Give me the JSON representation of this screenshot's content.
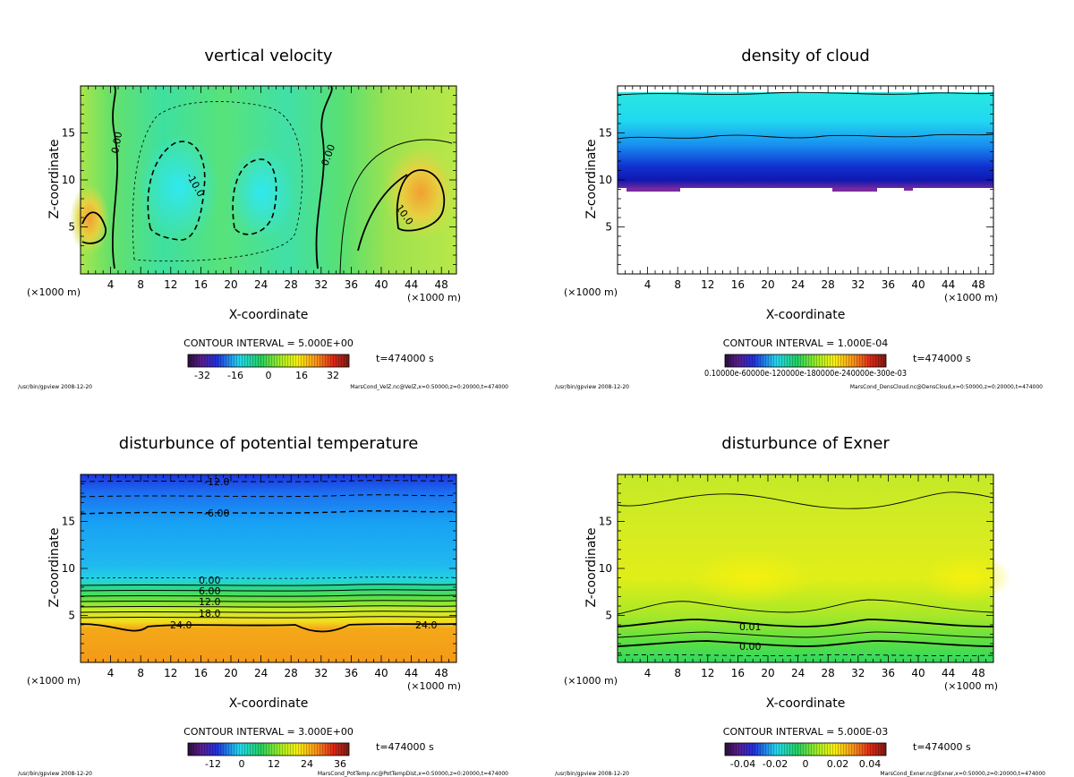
{
  "chart_data": [
    {
      "type": "heatmap",
      "title": "vertical velocity",
      "xlabel": "X-coordinate",
      "ylabel": "Z-coordinate",
      "x_unit_left": "(×1000 m)",
      "x_unit_right": "(×1000 m)",
      "xlim": [
        0,
        50
      ],
      "ylim": [
        0,
        20
      ],
      "xticks": [
        4,
        8,
        12,
        16,
        20,
        24,
        28,
        32,
        36,
        40,
        44,
        48
      ],
      "yticks": [
        5,
        10,
        15
      ],
      "contour_interval": "CONTOUR INTERVAL = 5.000E+00",
      "time": "t=474000 s",
      "colorbar_ticks": [
        "-32",
        "-16",
        "0",
        "16",
        "32"
      ],
      "contour_labels": [
        "0.00",
        "-10.0",
        "0.00",
        "10.0"
      ],
      "footer_left": "/usr/bin/gpview   2008-12-20",
      "footer_right": "MarsCond_VelZ.nc@VelZ,x=0:50000,z=0:20000,t=474000"
    },
    {
      "type": "heatmap",
      "title": "density of cloud",
      "xlabel": "X-coordinate",
      "ylabel": "Z-coordinate",
      "x_unit_left": "(×1000 m)",
      "x_unit_right": "(×1000 m)",
      "xlim": [
        0,
        50
      ],
      "ylim": [
        0,
        20
      ],
      "xticks": [
        4,
        8,
        12,
        16,
        20,
        24,
        28,
        32,
        36,
        40,
        44,
        48
      ],
      "yticks": [
        5,
        10,
        15
      ],
      "contour_interval": "CONTOUR INTERVAL = 1.000E-04",
      "time": "t=474000 s",
      "colorbar_ticks": [
        "0.10000e-60000e-120000e-180000e-240000e-300e-03"
      ],
      "contour_labels": [],
      "footer_left": "/usr/bin/gpview   2008-12-20",
      "footer_right": "MarsCond_DensCloud.nc@DensCloud,x=0:50000,z=0:20000,t=474000"
    },
    {
      "type": "heatmap",
      "title": "disturbunce of potential temperature",
      "xlabel": "X-coordinate",
      "ylabel": "Z-coordinate",
      "x_unit_left": "(×1000 m)",
      "x_unit_right": "(×1000 m)",
      "xlim": [
        0,
        50
      ],
      "ylim": [
        0,
        20
      ],
      "xticks": [
        4,
        8,
        12,
        16,
        20,
        24,
        28,
        32,
        36,
        40,
        44,
        48
      ],
      "yticks": [
        5,
        10,
        15
      ],
      "contour_interval": "CONTOUR INTERVAL = 3.000E+00",
      "time": "t=474000 s",
      "colorbar_ticks": [
        "-12",
        "0",
        "12",
        "24",
        "36"
      ],
      "contour_labels": [
        "-12.0",
        "-6.00",
        "0.00",
        "6.00",
        "12.0",
        "18.0",
        "24.0",
        "24.0"
      ],
      "footer_left": "/usr/bin/gpview   2008-12-20",
      "footer_right": "MarsCond_PotTemp.nc@PotTempDist,x=0:50000,z=0:20000,t=474000"
    },
    {
      "type": "heatmap",
      "title": "disturbunce of Exner",
      "xlabel": "X-coordinate",
      "ylabel": "Z-coordinate",
      "x_unit_left": "(×1000 m)",
      "x_unit_right": "(×1000 m)",
      "xlim": [
        0,
        50
      ],
      "ylim": [
        0,
        20
      ],
      "xticks": [
        4,
        8,
        12,
        16,
        20,
        24,
        28,
        32,
        36,
        40,
        44,
        48
      ],
      "yticks": [
        5,
        10,
        15
      ],
      "contour_interval": "CONTOUR INTERVAL = 5.000E-03",
      "time": "t=474000 s",
      "colorbar_ticks": [
        "-0.04",
        "-0.02",
        "0",
        "0.02",
        "0.04"
      ],
      "contour_labels": [
        "0.01",
        "0.00"
      ],
      "footer_left": "/usr/bin/gpview   2008-12-20",
      "footer_right": "MarsCond_Exner.nc@Exner,x=0:50000,z=0:20000,t=474000"
    }
  ]
}
